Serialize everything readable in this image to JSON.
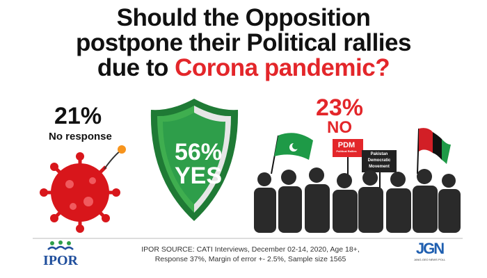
{
  "title": {
    "line1": "Should the Opposition",
    "line2": "postpone their Political rallies",
    "line3_prefix": "due to ",
    "line3_highlight": "Corona pandemic?"
  },
  "results": [
    {
      "label": "YES",
      "percent": "56%",
      "color": "#2e9e4a"
    },
    {
      "label": "NO",
      "percent": "23%",
      "color": "#e3262a"
    },
    {
      "label": "No response",
      "percent": "21%",
      "color": "#111111"
    }
  ],
  "signs": {
    "pdm": "PDM",
    "pdm_sub": "Political Rallies",
    "movement": [
      "Pakistan",
      "Democratic",
      "Movement"
    ]
  },
  "footer": {
    "source_line1": "IPOR SOURCE: CATI Interviews, December 02-14, 2020, Age 18+,",
    "source_line2": "Response 37%, Margin of error +- 2.5%, Sample size 1565",
    "left_logo": "IPOR",
    "right_logo": "JGN",
    "right_logo_caption": "JANG-GEO NEWS POLL"
  }
}
